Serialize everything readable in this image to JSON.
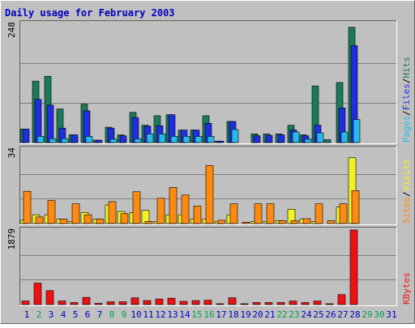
{
  "chart_data": {
    "type": "bar",
    "title": "Daily usage for February 2003",
    "categories": [
      "1",
      "2",
      "3",
      "4",
      "5",
      "6",
      "7",
      "8",
      "9",
      "10",
      "11",
      "12",
      "13",
      "14",
      "15",
      "16",
      "17",
      "18",
      "19",
      "20",
      "21",
      "22",
      "23",
      "24",
      "25",
      "26",
      "27",
      "28",
      "29",
      "30",
      "31"
    ],
    "weekend_days": [
      "2",
      "8",
      "9",
      "15",
      "16",
      "22",
      "23",
      "29",
      "30"
    ],
    "panels": [
      {
        "id": "hits",
        "ymax_label": "248",
        "ymax": 248,
        "grid": true,
        "legend": [
          "Pages",
          "/",
          "Files",
          "/",
          "Hits"
        ],
        "series": [
          {
            "name": "Hits",
            "color": "#1a7a5a",
            "values": [
              28,
              128,
              138,
              70,
              16,
              80,
              5,
              32,
              16,
              63,
              36,
              56,
              58,
              26,
              26,
              56,
              3,
              44,
              0,
              18,
              18,
              18,
              36,
              16,
              118,
              6,
              125,
              240,
              0,
              0,
              0
            ]
          },
          {
            "name": "Files",
            "color": "#1f2fe0",
            "values": [
              28,
              90,
              78,
              30,
              16,
              66,
              5,
              30,
              14,
              52,
              34,
              35,
              58,
              26,
              26,
              40,
              3,
              44,
              0,
              14,
              15,
              16,
              26,
              14,
              36,
              0,
              72,
              202,
              0,
              0,
              0
            ]
          },
          {
            "name": "Pages",
            "color": "#28b8ec",
            "values": [
              0,
              13,
              8,
              8,
              0,
              13,
              0,
              7,
              0,
              8,
              18,
              18,
              13,
              13,
              13,
              13,
              0,
              27,
              0,
              0,
              0,
              0,
              22,
              7,
              20,
              0,
              22,
              48,
              0,
              0,
              0
            ]
          }
        ]
      },
      {
        "id": "visits",
        "ymax_label": "34",
        "ymax": 34,
        "grid": true,
        "legend": [
          "Sites",
          "/",
          "Visits"
        ],
        "series": [
          {
            "name": "Visits",
            "color": "#f2f222",
            "values": [
              1.5,
              4,
              4,
              2,
              1,
              5,
              2,
              8.5,
              5.5,
              5,
              6,
              1,
              4,
              4,
              2,
              2,
              1,
              4,
              0,
              1,
              1,
              1.3,
              6.5,
              2,
              1,
              0,
              7.5,
              30,
              0,
              0,
              0
            ]
          },
          {
            "name": "Sites",
            "color": "#ff8a10",
            "values": [
              14.7,
              3,
              10.5,
              2,
              9,
              4,
              2,
              10,
              4.5,
              14.5,
              1,
              11.5,
              16.5,
              13,
              8,
              26.5,
              1.5,
              9,
              0.6,
              9,
              9,
              1.3,
              1.3,
              2.2,
              9,
              1.3,
              9,
              15,
              0,
              0,
              0
            ]
          }
        ]
      },
      {
        "id": "kbytes",
        "ymax_label": "1879",
        "ymax": 1879,
        "grid": true,
        "legend": [
          "KBytes"
        ],
        "series": [
          {
            "name": "KBytes",
            "color": "#ee1111",
            "values": [
              90,
              540,
              350,
              90,
              50,
              180,
              30,
              70,
              70,
              170,
              100,
              140,
              160,
              80,
              100,
              110,
              20,
              170,
              10,
              50,
              50,
              50,
              90,
              50,
              90,
              10,
              250,
              1879,
              0,
              0,
              0
            ]
          }
        ]
      }
    ]
  },
  "colors": {
    "frame_bg": "#c0c0c0",
    "plot_bg": "#c0c0c0",
    "grid": "#808080",
    "title": "#0000c0",
    "weekday": "#0000c0",
    "weekend": "#00a050",
    "axis_label": "#000000"
  }
}
